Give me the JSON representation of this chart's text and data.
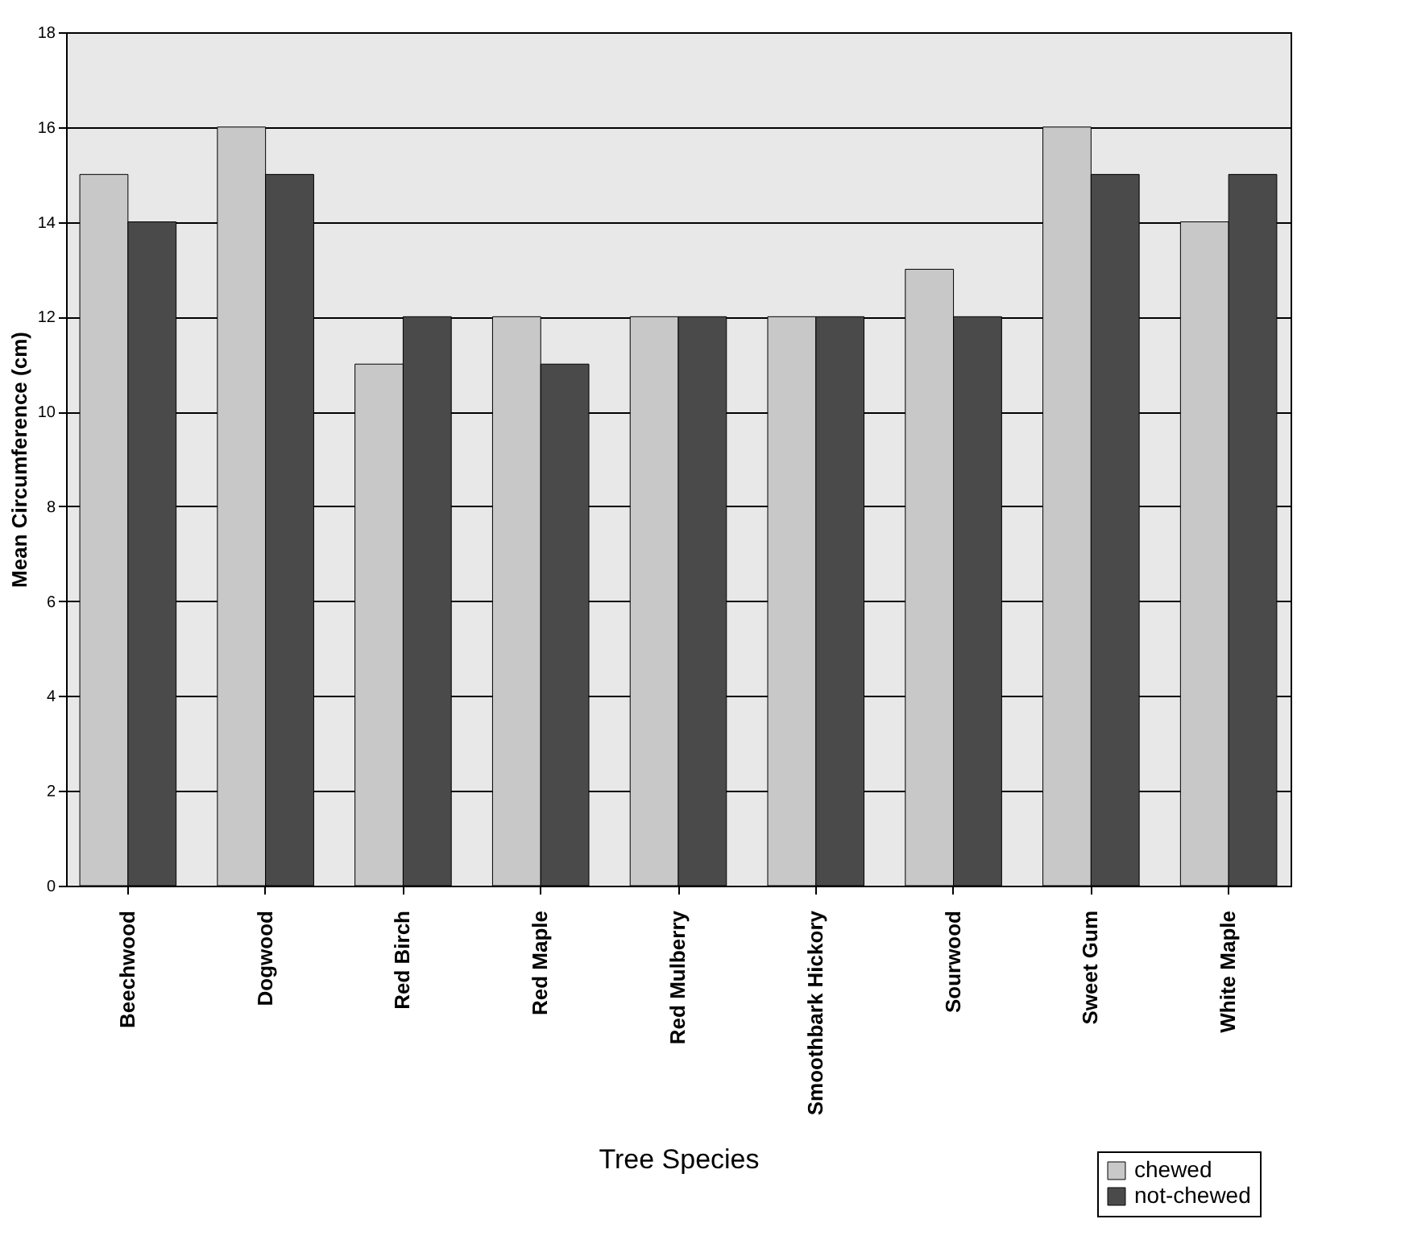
{
  "chart_data": {
    "type": "bar",
    "xlabel": "Tree Species",
    "ylabel": "Mean Circumference (cm)",
    "categories": [
      "Beechwood",
      "Dogwood",
      "Red Birch",
      "Red Maple",
      "Red Mulberry",
      "Smoothbark Hickory",
      "Sourwood",
      "Sweet Gum",
      "White Maple"
    ],
    "series": [
      {
        "name": "chewed",
        "color": "#c8c8c8",
        "values": [
          15,
          16,
          11,
          12,
          12,
          12,
          13,
          16,
          14
        ]
      },
      {
        "name": "not-chewed",
        "color": "#4a4a4a",
        "values": [
          14,
          15,
          12,
          11,
          12,
          12,
          12,
          15,
          15
        ]
      }
    ],
    "ylim": [
      0,
      18
    ],
    "yticks": [
      0,
      2,
      4,
      6,
      8,
      10,
      12,
      14,
      16,
      18
    ],
    "grid": "y",
    "legend": "bottom right"
  }
}
